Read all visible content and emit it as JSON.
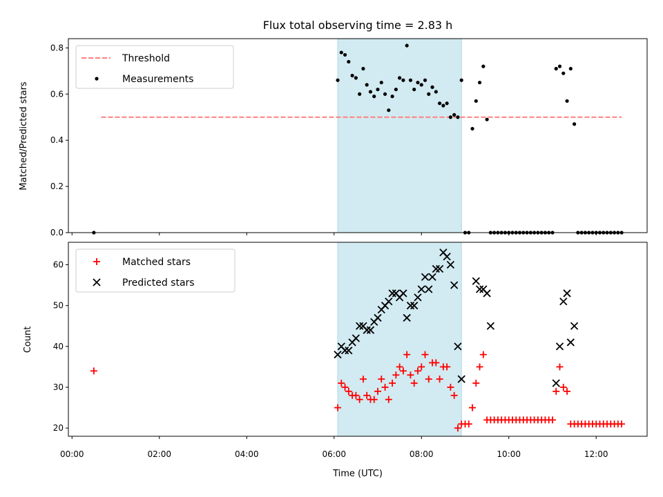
{
  "chart_data": [
    {
      "type": "scatter",
      "title": "Flux total observing time = 2.83 h",
      "xlabel": "",
      "ylabel": "Matched/Predicted stars",
      "xlim": [
        "-00:05",
        "13:10"
      ],
      "ylim": [
        0,
        0.84
      ],
      "yticks": [
        "0.0",
        "0.2",
        "0.4",
        "0.6",
        "0.8"
      ],
      "legend_position": "top-left",
      "shaded_interval": [
        "06:05",
        "08:55"
      ],
      "colors": {
        "threshold": "#ff7f7f",
        "measurements": "#000000",
        "shade": "#add8e6"
      },
      "series": [
        {
          "name": "Threshold",
          "marker": "dashed-line",
          "color": "#ff7f7f",
          "x": [
            "00:40",
            "12:35"
          ],
          "y": [
            0.5,
            0.5
          ]
        },
        {
          "name": "Measurements",
          "marker": "dot",
          "color": "#000000",
          "x": [
            "00:30",
            "06:05",
            "06:10",
            "06:15",
            "06:20",
            "06:25",
            "06:30",
            "06:35",
            "06:40",
            "06:45",
            "06:50",
            "06:55",
            "07:00",
            "07:05",
            "07:10",
            "07:15",
            "07:20",
            "07:25",
            "07:30",
            "07:35",
            "07:40",
            "07:45",
            "07:50",
            "07:55",
            "08:00",
            "08:05",
            "08:10",
            "08:15",
            "08:20",
            "08:25",
            "08:30",
            "08:35",
            "08:40",
            "08:45",
            "08:50",
            "08:55",
            "09:00",
            "09:05",
            "09:10",
            "09:15",
            "09:20",
            "09:25",
            "09:30",
            "09:35",
            "09:40",
            "09:45",
            "09:50",
            "09:55",
            "10:00",
            "10:05",
            "10:10",
            "10:15",
            "10:20",
            "10:25",
            "10:30",
            "10:35",
            "10:40",
            "10:45",
            "10:50",
            "10:55",
            "11:00",
            "11:05",
            "11:10",
            "11:15",
            "11:20",
            "11:25",
            "11:30",
            "11:35",
            "11:40",
            "11:45",
            "11:50",
            "11:55",
            "12:00",
            "12:05",
            "12:10",
            "12:15",
            "12:20",
            "12:25",
            "12:30",
            "12:35"
          ],
          "y": [
            0.0,
            0.66,
            0.78,
            0.77,
            0.74,
            0.68,
            0.67,
            0.6,
            0.71,
            0.64,
            0.61,
            0.59,
            0.62,
            0.65,
            0.6,
            0.53,
            0.59,
            0.62,
            0.67,
            0.66,
            0.81,
            0.66,
            0.62,
            0.65,
            0.64,
            0.66,
            0.6,
            0.63,
            0.61,
            0.56,
            0.55,
            0.56,
            0.5,
            0.51,
            0.5,
            0.66,
            0.0,
            0.0,
            0.45,
            0.57,
            0.65,
            0.72,
            0.49,
            0.0,
            0.0,
            0.0,
            0.0,
            0.0,
            0.0,
            0.0,
            0.0,
            0.0,
            0.0,
            0.0,
            0.0,
            0.0,
            0.0,
            0.0,
            0.0,
            0.0,
            0.0,
            0.71,
            0.72,
            0.69,
            0.57,
            0.71,
            0.47,
            0.0,
            0.0,
            0.0,
            0.0,
            0.0,
            0.0,
            0.0,
            0.0,
            0.0,
            0.0,
            0.0,
            0.0,
            0.0
          ]
        }
      ]
    },
    {
      "type": "scatter",
      "title": "",
      "xlabel": "Time (UTC)",
      "ylabel": "Count",
      "xlim": [
        "-00:05",
        "13:10"
      ],
      "ylim": [
        18,
        65.5
      ],
      "xticks": [
        "00:00",
        "02:00",
        "04:00",
        "06:00",
        "08:00",
        "10:00",
        "12:00"
      ],
      "yticks": [
        "20",
        "30",
        "40",
        "50",
        "60"
      ],
      "legend_position": "top-left",
      "shaded_interval": [
        "06:05",
        "08:55"
      ],
      "colors": {
        "matched": "#ff0000",
        "predicted": "#000000",
        "shade": "#add8e6"
      },
      "series": [
        {
          "name": "Matched stars",
          "marker": "plus",
          "color": "#ff0000",
          "x": [
            "00:30",
            "06:05",
            "06:10",
            "06:15",
            "06:20",
            "06:25",
            "06:30",
            "06:35",
            "06:40",
            "06:45",
            "06:50",
            "06:55",
            "07:00",
            "07:05",
            "07:10",
            "07:15",
            "07:20",
            "07:25",
            "07:30",
            "07:35",
            "07:40",
            "07:45",
            "07:50",
            "07:55",
            "08:00",
            "08:05",
            "08:10",
            "08:15",
            "08:20",
            "08:25",
            "08:30",
            "08:35",
            "08:40",
            "08:45",
            "08:50",
            "08:55",
            "09:00",
            "09:05",
            "09:10",
            "09:15",
            "09:20",
            "09:25",
            "09:30",
            "09:35",
            "09:40",
            "09:45",
            "09:50",
            "09:55",
            "10:00",
            "10:05",
            "10:10",
            "10:15",
            "10:20",
            "10:25",
            "10:30",
            "10:35",
            "10:40",
            "10:45",
            "10:50",
            "10:55",
            "11:00",
            "11:05",
            "11:10",
            "11:15",
            "11:20",
            "11:25",
            "11:30",
            "11:35",
            "11:40",
            "11:45",
            "11:50",
            "11:55",
            "12:00",
            "12:05",
            "12:10",
            "12:15",
            "12:20",
            "12:25",
            "12:30",
            "12:35"
          ],
          "y": [
            34,
            25,
            31,
            30,
            29,
            28,
            28,
            27,
            32,
            28,
            27,
            27,
            29,
            32,
            30,
            27,
            31,
            33,
            35,
            34,
            38,
            33,
            31,
            34,
            35,
            38,
            32,
            36,
            36,
            32,
            35,
            35,
            30,
            28,
            20,
            21,
            21,
            21,
            25,
            31,
            35,
            38,
            22,
            22,
            22,
            22,
            22,
            22,
            22,
            22,
            22,
            22,
            22,
            22,
            22,
            22,
            22,
            22,
            22,
            22,
            22,
            29,
            35,
            30,
            29,
            21,
            21,
            21,
            21,
            21,
            21,
            21,
            21,
            21,
            21,
            21,
            21,
            21,
            21,
            21
          ]
        },
        {
          "name": "Predicted stars",
          "marker": "x",
          "color": "#000000",
          "x": [
            "06:05",
            "06:10",
            "06:15",
            "06:20",
            "06:25",
            "06:30",
            "06:35",
            "06:40",
            "06:45",
            "06:50",
            "06:55",
            "07:00",
            "07:05",
            "07:10",
            "07:15",
            "07:20",
            "07:25",
            "07:30",
            "07:35",
            "07:40",
            "07:45",
            "07:50",
            "07:55",
            "08:00",
            "08:05",
            "08:10",
            "08:15",
            "08:20",
            "08:25",
            "08:30",
            "08:35",
            "08:40",
            "08:45",
            "08:50",
            "08:55",
            "09:15",
            "09:20",
            "09:25",
            "09:30",
            "09:35",
            "11:05",
            "11:10",
            "11:15",
            "11:20",
            "11:25",
            "11:30"
          ],
          "y": [
            38,
            40,
            39,
            39,
            41,
            42,
            45,
            45,
            44,
            44,
            46,
            47,
            49,
            50,
            51,
            53,
            53,
            52,
            53,
            47,
            50,
            50,
            52,
            54,
            57,
            54,
            57,
            59,
            59,
            63,
            62,
            60,
            55,
            40,
            32,
            56,
            54,
            54,
            53,
            45,
            31,
            40,
            51,
            53,
            41,
            45
          ]
        }
      ]
    }
  ]
}
